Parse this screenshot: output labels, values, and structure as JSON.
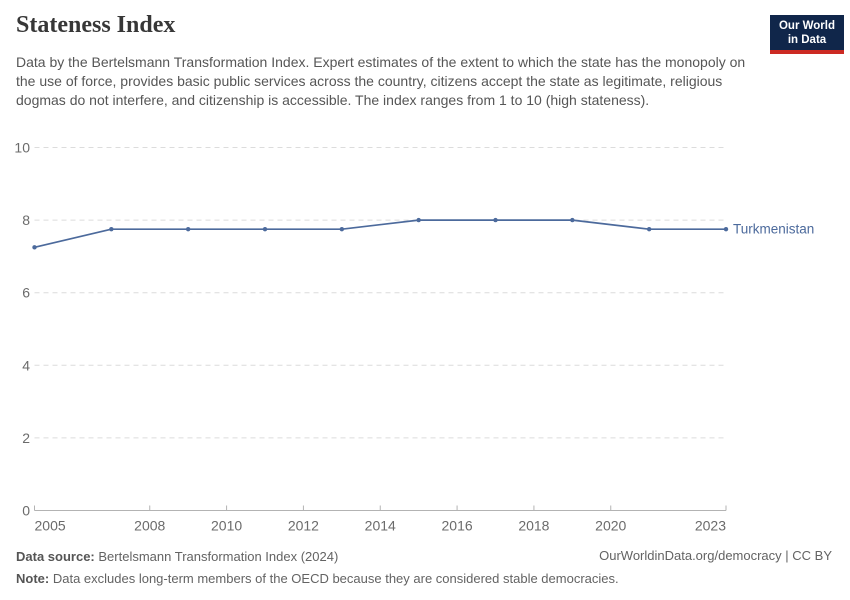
{
  "header": {
    "title": "Stateness Index",
    "subtitle": "Data by the Bertelsmann Transformation Index. Expert estimates of the extent to which the state has the monopoly on the use of force, provides basic public services across the country, citizens accept the state as legitimate, religious dogmas do not interfere, and citizenship is accessible. The index ranges from 1 to 10 (high stateness).",
    "logo": {
      "line1": "Our World",
      "line2": "in Data",
      "bg_color": "#10264a",
      "accent_color": "#cc2a23"
    }
  },
  "chart_data": {
    "type": "line",
    "title": "Stateness Index",
    "xlabel": "",
    "ylabel": "",
    "xlim": [
      2005,
      2023
    ],
    "ylim": [
      0,
      10
    ],
    "x_ticks": [
      2005,
      2008,
      2010,
      2012,
      2014,
      2016,
      2018,
      2020,
      2023
    ],
    "y_ticks": [
      0,
      2,
      4,
      6,
      8,
      10
    ],
    "grid": "horizontal-dashed",
    "legend_position": "right-of-line-end",
    "series": [
      {
        "name": "Turkmenistan",
        "color": "#4c6a9c",
        "x": [
          2005,
          2007,
          2009,
          2011,
          2013,
          2015,
          2017,
          2019,
          2021,
          2023
        ],
        "values": [
          7.25,
          7.75,
          7.75,
          7.75,
          7.75,
          8,
          8,
          8,
          7.75,
          7.75
        ]
      }
    ],
    "colors": {
      "grid": "#dcdcdc",
      "axis": "#b3b3b3",
      "axis_text": "#6b6b6b"
    }
  },
  "footer": {
    "datasource_label": "Data source:",
    "datasource_value": "Bertelsmann Transformation Index (2024)",
    "note_label": "Note:",
    "note_value": "Data excludes long-term members of the OECD because they are considered stable democracies.",
    "link": "OurWorldinData.org/democracy | CC BY"
  }
}
